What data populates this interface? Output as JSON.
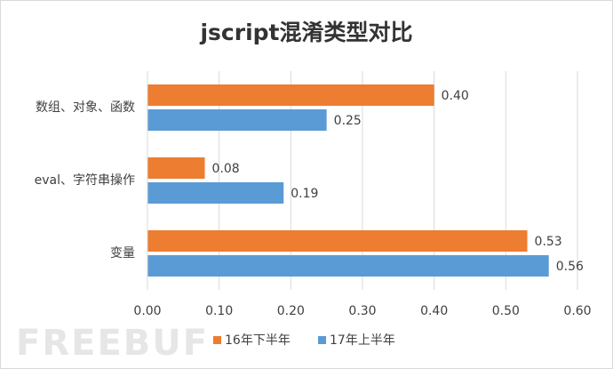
{
  "chart_data": {
    "type": "hbar",
    "title": "jscript混淆类型对比",
    "watermark": "FREEBUF",
    "categories": [
      "数组、对象、函数",
      "eval、字符串操作",
      "变量"
    ],
    "series": [
      {
        "name": "16年下半年",
        "color": "#ed7d31",
        "values": [
          0.4,
          0.08,
          0.53
        ],
        "value_labels": [
          "0.40",
          "0.08",
          "0.53"
        ]
      },
      {
        "name": "17年上半年",
        "color": "#5b9bd5",
        "values": [
          0.25,
          0.19,
          0.56
        ],
        "value_labels": [
          "0.25",
          "0.19",
          "0.56"
        ]
      }
    ],
    "xlim": [
      0,
      0.6
    ],
    "xticks": [
      {
        "value": 0,
        "label": "0.00"
      },
      {
        "value": 0.1,
        "label": "0.10"
      },
      {
        "value": 0.2,
        "label": "0.20"
      },
      {
        "value": 0.3,
        "label": "0.30"
      },
      {
        "value": 0.4,
        "label": "0.40"
      },
      {
        "value": 0.5,
        "label": "0.50"
      },
      {
        "value": 0.6,
        "label": "0.60"
      }
    ],
    "grid": true,
    "legend": "bottom"
  }
}
